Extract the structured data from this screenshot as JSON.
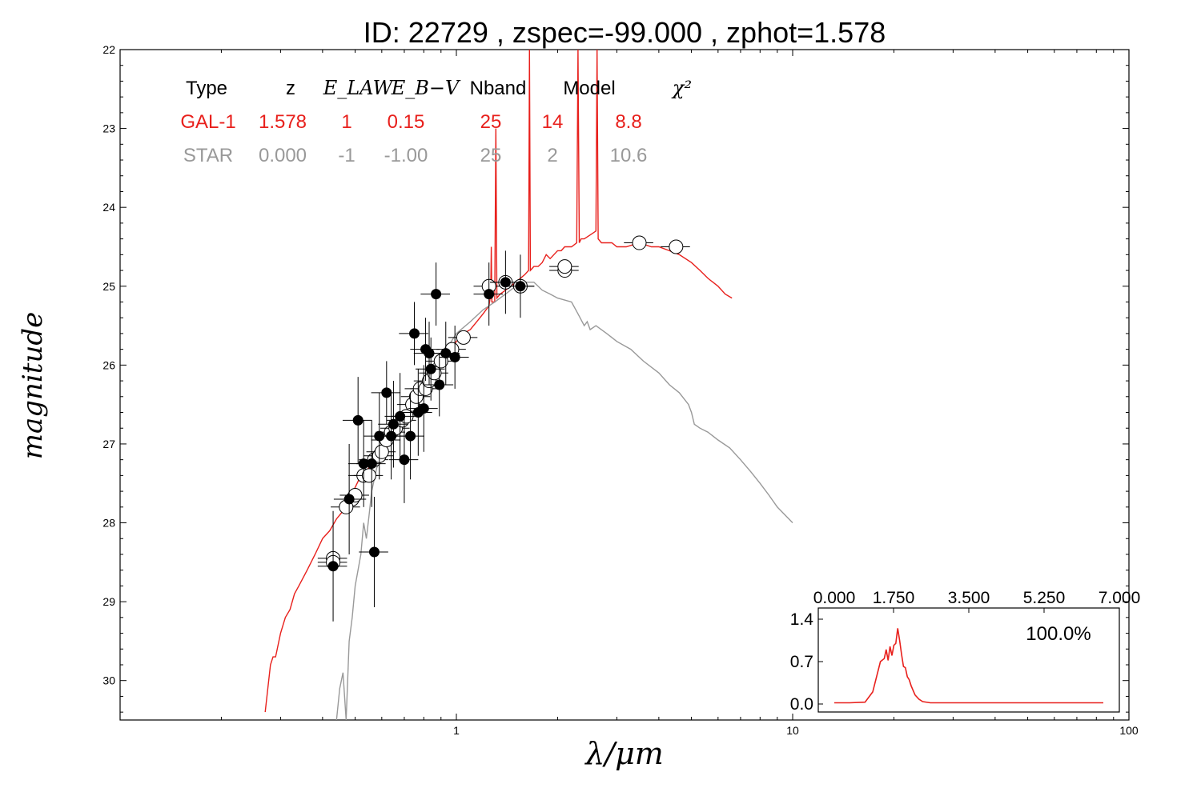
{
  "title": "ID:  22729 , zspec=-99.000 , zphot=1.578",
  "colors": {
    "galaxy": "#e8201c",
    "star": "#999999",
    "axis": "#000000"
  },
  "chart_data": [
    {
      "type": "scatter",
      "name": "SED fit",
      "xlabel": "λ/μm",
      "ylabel": "magnitude",
      "xscale": "log",
      "xlim": [
        0.1,
        100
      ],
      "ylim": [
        30.5,
        22
      ],
      "y_inverted": true,
      "x_ticks": [
        1,
        10,
        100
      ],
      "x_tick_labels": [
        "1",
        "10",
        "100"
      ],
      "y_ticks": [
        22,
        23,
        24,
        25,
        26,
        27,
        28,
        29,
        30
      ],
      "y_tick_labels": [
        "22",
        "23",
        "24",
        "25",
        "26",
        "27",
        "28",
        "29",
        "30"
      ],
      "grid": false,
      "legend_table": {
        "headers": [
          "Type",
          "z",
          "E_LAW",
          "E_B−V",
          "Nband",
          "Model",
          "χ²"
        ],
        "rows": [
          {
            "color": "#e8201c",
            "cells": [
              "GAL-1",
              "1.578",
              "1",
              "0.15",
              "25",
              "14",
              "8.8"
            ]
          },
          {
            "color": "#999999",
            "cells": [
              "STAR",
              "0.000",
              "-1",
              "-1.00",
              "25",
              "2",
              "10.6"
            ]
          }
        ]
      },
      "series": [
        {
          "kind": "line",
          "color": "#e8201c",
          "points": [
            [
              0.27,
              30.4
            ],
            [
              0.275,
              30.1
            ],
            [
              0.28,
              29.8
            ],
            [
              0.285,
              29.7
            ],
            [
              0.29,
              29.7
            ],
            [
              0.3,
              29.4
            ],
            [
              0.31,
              29.2
            ],
            [
              0.32,
              29.1
            ],
            [
              0.33,
              28.9
            ],
            [
              0.34,
              28.8
            ],
            [
              0.36,
              28.6
            ],
            [
              0.38,
              28.4
            ],
            [
              0.4,
              28.2
            ],
            [
              0.42,
              28.1
            ],
            [
              0.44,
              27.95
            ],
            [
              0.46,
              27.85
            ],
            [
              0.48,
              27.7
            ],
            [
              0.5,
              27.55
            ],
            [
              0.52,
              27.4
            ],
            [
              0.55,
              27.3
            ],
            [
              0.58,
              27.2
            ],
            [
              0.6,
              27.15
            ],
            [
              0.62,
              27.05
            ],
            [
              0.65,
              26.9
            ],
            [
              0.68,
              26.8
            ],
            [
              0.7,
              26.7
            ],
            [
              0.72,
              26.6
            ],
            [
              0.75,
              26.45
            ],
            [
              0.78,
              26.35
            ],
            [
              0.8,
              26.25
            ],
            [
              0.85,
              26.1
            ],
            [
              0.9,
              26.0
            ],
            [
              0.95,
              25.85
            ],
            [
              1.0,
              25.7
            ],
            [
              1.05,
              25.6
            ],
            [
              1.1,
              25.55
            ],
            [
              1.15,
              25.45
            ],
            [
              1.2,
              25.35
            ],
            [
              1.25,
              25.25
            ],
            [
              1.265,
              25.1
            ],
            [
              1.27,
              24.5
            ],
            [
              1.275,
              25.2
            ],
            [
              1.3,
              25.2
            ],
            [
              1.31,
              23.0
            ],
            [
              1.32,
              25.15
            ],
            [
              1.35,
              25.1
            ],
            [
              1.4,
              25.05
            ],
            [
              1.45,
              25.0
            ],
            [
              1.5,
              24.95
            ],
            [
              1.55,
              24.9
            ],
            [
              1.6,
              24.85
            ],
            [
              1.64,
              24.8
            ],
            [
              1.65,
              22.0
            ],
            [
              1.66,
              24.8
            ],
            [
              1.7,
              24.75
            ],
            [
              1.75,
              24.75
            ],
            [
              1.8,
              24.7
            ],
            [
              1.85,
              24.6
            ],
            [
              1.9,
              24.65
            ],
            [
              1.95,
              24.6
            ],
            [
              2.0,
              24.55
            ],
            [
              2.05,
              24.55
            ],
            [
              2.1,
              24.5
            ],
            [
              2.15,
              24.5
            ],
            [
              2.2,
              24.5
            ],
            [
              2.28,
              24.45
            ],
            [
              2.3,
              22.0
            ],
            [
              2.32,
              24.45
            ],
            [
              2.35,
              24.4
            ],
            [
              2.4,
              24.4
            ],
            [
              2.5,
              24.35
            ],
            [
              2.6,
              24.3
            ],
            [
              2.62,
              22.0
            ],
            [
              2.64,
              24.4
            ],
            [
              2.7,
              24.45
            ],
            [
              2.8,
              24.45
            ],
            [
              2.9,
              24.45
            ],
            [
              3.0,
              24.5
            ],
            [
              3.2,
              24.5
            ],
            [
              3.5,
              24.45
            ],
            [
              3.8,
              24.5
            ],
            [
              4.0,
              24.5
            ],
            [
              4.3,
              24.55
            ],
            [
              4.6,
              24.6
            ],
            [
              5.0,
              24.7
            ],
            [
              5.3,
              24.8
            ],
            [
              5.6,
              24.9
            ],
            [
              6.0,
              25.0
            ],
            [
              6.3,
              25.1
            ],
            [
              6.6,
              25.15
            ]
          ]
        },
        {
          "kind": "line",
          "color": "#999999",
          "points": [
            [
              0.44,
              30.5
            ],
            [
              0.445,
              30.3
            ],
            [
              0.45,
              30.1
            ],
            [
              0.46,
              29.9
            ],
            [
              0.47,
              30.5
            ],
            [
              0.48,
              29.5
            ],
            [
              0.49,
              29.2
            ],
            [
              0.5,
              28.8
            ],
            [
              0.52,
              28.4
            ],
            [
              0.53,
              28.0
            ],
            [
              0.54,
              28.2
            ],
            [
              0.55,
              27.9
            ],
            [
              0.56,
              27.6
            ],
            [
              0.58,
              27.3
            ],
            [
              0.6,
              27.2
            ],
            [
              0.62,
              27.0
            ],
            [
              0.65,
              26.8
            ],
            [
              0.7,
              26.6
            ],
            [
              0.75,
              26.4
            ],
            [
              0.8,
              26.2
            ],
            [
              0.85,
              26.0
            ],
            [
              0.9,
              25.85
            ],
            [
              0.95,
              25.75
            ],
            [
              1.0,
              25.6
            ],
            [
              1.1,
              25.45
            ],
            [
              1.2,
              25.3
            ],
            [
              1.3,
              25.2
            ],
            [
              1.4,
              25.1
            ],
            [
              1.5,
              25.0
            ],
            [
              1.6,
              24.95
            ],
            [
              1.7,
              24.95
            ],
            [
              1.8,
              25.05
            ],
            [
              1.9,
              25.1
            ],
            [
              2.0,
              25.15
            ],
            [
              2.2,
              25.2
            ],
            [
              2.3,
              25.35
            ],
            [
              2.4,
              25.5
            ],
            [
              2.45,
              25.45
            ],
            [
              2.5,
              25.55
            ],
            [
              2.6,
              25.5
            ],
            [
              2.8,
              25.6
            ],
            [
              3.0,
              25.7
            ],
            [
              3.3,
              25.8
            ],
            [
              3.6,
              25.95
            ],
            [
              4.0,
              26.1
            ],
            [
              4.3,
              26.25
            ],
            [
              4.6,
              26.35
            ],
            [
              4.9,
              26.5
            ],
            [
              5.0,
              26.6
            ],
            [
              5.1,
              26.75
            ],
            [
              5.3,
              26.8
            ],
            [
              5.6,
              26.85
            ],
            [
              6.0,
              26.95
            ],
            [
              6.5,
              27.05
            ],
            [
              7.0,
              27.2
            ],
            [
              7.5,
              27.35
            ],
            [
              8.0,
              27.5
            ],
            [
              8.5,
              27.65
            ],
            [
              9.0,
              27.8
            ],
            [
              10.0,
              28.0
            ]
          ]
        },
        {
          "kind": "points",
          "style": "open",
          "label": "model magnitudes",
          "points": [
            [
              0.43,
              28.45
            ],
            [
              0.43,
              28.5
            ],
            [
              0.49,
              27.7
            ],
            [
              0.5,
              27.65
            ],
            [
              0.47,
              27.8
            ],
            [
              0.53,
              27.4
            ],
            [
              0.55,
              27.4
            ],
            [
              0.57,
              27.2
            ],
            [
              0.59,
              27.15
            ],
            [
              0.6,
              27.1
            ],
            [
              0.62,
              26.95
            ],
            [
              0.64,
              26.85
            ],
            [
              0.66,
              26.8
            ],
            [
              0.69,
              26.7
            ],
            [
              0.71,
              26.65
            ],
            [
              0.74,
              26.5
            ],
            [
              0.76,
              26.4
            ],
            [
              0.78,
              26.3
            ],
            [
              0.81,
              26.3
            ],
            [
              0.83,
              26.2
            ],
            [
              0.86,
              26.1
            ],
            [
              0.9,
              25.95
            ],
            [
              0.97,
              25.8
            ],
            [
              1.05,
              25.65
            ],
            [
              1.25,
              25.0
            ],
            [
              1.4,
              24.95
            ],
            [
              1.55,
              25.0
            ],
            [
              2.1,
              24.8
            ],
            [
              2.1,
              24.75
            ],
            [
              3.5,
              24.45
            ],
            [
              4.5,
              24.5
            ]
          ]
        },
        {
          "kind": "points",
          "style": "filled",
          "label": "observed magnitudes",
          "points": [
            [
              0.43,
              28.55
            ],
            [
              0.48,
              27.7
            ],
            [
              0.51,
              26.7
            ],
            [
              0.53,
              27.25
            ],
            [
              0.56,
              27.25
            ],
            [
              0.57,
              28.37
            ],
            [
              0.59,
              26.9
            ],
            [
              0.62,
              26.35
            ],
            [
              0.64,
              26.9
            ],
            [
              0.65,
              26.75
            ],
            [
              0.68,
              26.65
            ],
            [
              0.7,
              27.2
            ],
            [
              0.73,
              26.9
            ],
            [
              0.75,
              25.6
            ],
            [
              0.77,
              26.6
            ],
            [
              0.8,
              26.55
            ],
            [
              0.81,
              25.8
            ],
            [
              0.83,
              25.85
            ],
            [
              0.84,
              26.05
            ],
            [
              0.87,
              25.1
            ],
            [
              0.89,
              26.25
            ],
            [
              0.93,
              25.85
            ],
            [
              0.99,
              25.9
            ],
            [
              1.25,
              25.1
            ],
            [
              1.4,
              24.95
            ],
            [
              1.55,
              25.0
            ]
          ]
        }
      ]
    },
    {
      "type": "line",
      "name": "redshift PDF inset",
      "xlim": [
        0,
        7
      ],
      "ylim": [
        -0.1,
        1.5
      ],
      "x_tick_labels": [
        "0.000",
        "1.750",
        "3.500",
        "5.250",
        "7.000"
      ],
      "y_tick_labels": [
        "1.4",
        "0.7",
        "0.0"
      ],
      "annotation": "100.0%",
      "x": [
        0,
        0.4,
        0.8,
        1.0,
        1.1,
        1.2,
        1.3,
        1.35,
        1.4,
        1.45,
        1.5,
        1.55,
        1.6,
        1.65,
        1.7,
        1.75,
        1.8,
        1.85,
        1.9,
        1.95,
        2.0,
        2.1,
        2.2,
        2.3,
        2.5,
        2.8,
        3.2,
        4.0,
        5.0,
        6.0,
        7.0
      ],
      "y": [
        0.02,
        0.02,
        0.03,
        0.2,
        0.45,
        0.7,
        0.75,
        0.9,
        0.72,
        0.95,
        0.8,
        0.97,
        1.0,
        1.25,
        1.05,
        0.82,
        0.62,
        0.6,
        0.45,
        0.4,
        0.3,
        0.15,
        0.08,
        0.04,
        0.02,
        0.02,
        0.02,
        0.02,
        0.02,
        0.02,
        0.02
      ]
    }
  ]
}
